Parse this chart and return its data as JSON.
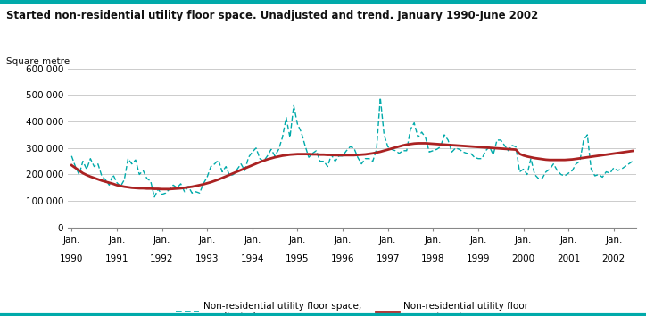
{
  "title": "Started non-residential utility floor space. Unadjusted and trend. January 1990-June 2002",
  "ylabel": "Square metre",
  "ylim": [
    0,
    620000
  ],
  "yticks": [
    0,
    100000,
    200000,
    300000,
    400000,
    500000,
    600000
  ],
  "ytick_labels": [
    "0",
    "100 000",
    "200 000",
    "300 000",
    "400 000",
    "500 000",
    "600 000"
  ],
  "background_color": "#ffffff",
  "grid_color": "#cccccc",
  "unadjusted_color": "#00AAAA",
  "trend_color": "#AA2222",
  "title_color": "#222222",
  "unadjusted_data": [
    270000,
    230000,
    200000,
    250000,
    220000,
    260000,
    230000,
    240000,
    195000,
    180000,
    160000,
    200000,
    170000,
    155000,
    180000,
    260000,
    240000,
    255000,
    200000,
    215000,
    185000,
    175000,
    115000,
    145000,
    125000,
    130000,
    145000,
    160000,
    150000,
    165000,
    135000,
    155000,
    130000,
    135000,
    130000,
    165000,
    190000,
    230000,
    240000,
    255000,
    210000,
    230000,
    195000,
    200000,
    220000,
    240000,
    215000,
    265000,
    285000,
    300000,
    260000,
    250000,
    270000,
    295000,
    270000,
    295000,
    340000,
    415000,
    340000,
    460000,
    390000,
    360000,
    310000,
    265000,
    280000,
    290000,
    250000,
    250000,
    230000,
    275000,
    250000,
    270000,
    270000,
    290000,
    305000,
    300000,
    265000,
    240000,
    260000,
    260000,
    250000,
    295000,
    490000,
    350000,
    305000,
    295000,
    290000,
    280000,
    290000,
    290000,
    370000,
    395000,
    340000,
    360000,
    340000,
    285000,
    290000,
    295000,
    305000,
    350000,
    330000,
    285000,
    300000,
    295000,
    285000,
    280000,
    280000,
    265000,
    260000,
    260000,
    290000,
    305000,
    275000,
    330000,
    330000,
    310000,
    290000,
    310000,
    305000,
    210000,
    220000,
    200000,
    260000,
    200000,
    185000,
    185000,
    210000,
    220000,
    240000,
    215000,
    200000,
    195000,
    205000,
    215000,
    240000,
    250000,
    330000,
    350000,
    220000,
    195000,
    200000,
    190000,
    210000,
    205000,
    225000,
    215000,
    220000,
    230000,
    240000,
    250000
  ],
  "trend_data": [
    235000,
    225000,
    215000,
    205000,
    198000,
    192000,
    187000,
    182000,
    177000,
    173000,
    169000,
    165000,
    160000,
    157000,
    154000,
    152000,
    150000,
    149000,
    148000,
    148000,
    147000,
    147000,
    146000,
    146000,
    145000,
    145000,
    145000,
    146000,
    147000,
    148000,
    150000,
    152000,
    154000,
    157000,
    160000,
    163000,
    167000,
    171000,
    176000,
    181000,
    187000,
    193000,
    199000,
    205000,
    211000,
    217000,
    223000,
    229000,
    235000,
    241000,
    247000,
    252000,
    257000,
    261000,
    265000,
    268000,
    271000,
    273000,
    275000,
    276000,
    277000,
    277000,
    277000,
    277000,
    276000,
    276000,
    275000,
    275000,
    274000,
    274000,
    273000,
    273000,
    273000,
    273000,
    273000,
    273000,
    274000,
    275000,
    276000,
    278000,
    280000,
    283000,
    286000,
    290000,
    294000,
    298000,
    302000,
    306000,
    310000,
    313000,
    315000,
    317000,
    318000,
    318000,
    318000,
    317000,
    316000,
    315000,
    314000,
    313000,
    312000,
    311000,
    310000,
    309000,
    308000,
    307000,
    306000,
    305000,
    304000,
    303000,
    302000,
    301000,
    300000,
    299000,
    298000,
    297000,
    296000,
    295000,
    294000,
    278000,
    272000,
    268000,
    265000,
    262000,
    260000,
    258000,
    256000,
    255000,
    255000,
    255000,
    255000,
    255000,
    256000,
    257000,
    259000,
    261000,
    263000,
    265000,
    267000,
    269000,
    271000,
    273000,
    275000,
    277000,
    279000,
    281000,
    283000,
    285000,
    287000,
    289000
  ],
  "n_months": 150,
  "start_year": 1990,
  "start_month": 1
}
